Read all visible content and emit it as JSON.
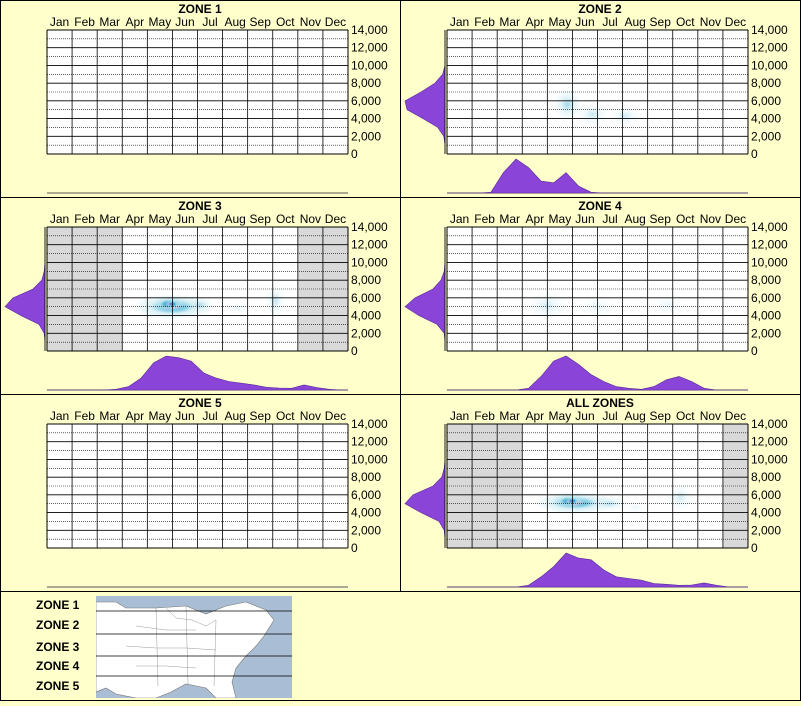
{
  "months": [
    "Jan",
    "Feb",
    "Mar",
    "Apr",
    "May",
    "Jun",
    "Jul",
    "Aug",
    "Sep",
    "Oct",
    "Nov",
    "Dec"
  ],
  "y_ticks": [
    "14,000",
    "12,000",
    "10,000",
    "8,000",
    "6,000",
    "4,000",
    "2,000",
    "0"
  ],
  "colors": {
    "background": "#ffffcc",
    "grid": "#000000",
    "density": "#8a44d8",
    "shade": "#d9d9d9",
    "heat_low": "#bfe7ef",
    "heat_mid": "#2aa7d2",
    "heat_high": "#ff2a9a"
  },
  "chart_data": [
    {
      "type": "heatmap",
      "title": "ZONE 1",
      "xlabel": "",
      "ylabel": "",
      "ylim": [
        0,
        14000
      ],
      "categories": [
        "Jan",
        "Feb",
        "Mar",
        "Apr",
        "May",
        "Jun",
        "Jul",
        "Aug",
        "Sep",
        "Oct",
        "Nov",
        "Dec"
      ],
      "shaded_months": [],
      "hotspots": [],
      "month_density": [],
      "elev_density": []
    },
    {
      "type": "heatmap",
      "title": "ZONE 2",
      "xlabel": "",
      "ylabel": "",
      "ylim": [
        0,
        14000
      ],
      "categories": [
        "Jan",
        "Feb",
        "Mar",
        "Apr",
        "May",
        "Jun",
        "Jul",
        "Aug",
        "Sep",
        "Oct",
        "Nov",
        "Dec"
      ],
      "shaded_months": [],
      "hotspots": [
        {
          "month": 5.3,
          "elev": 5600,
          "sx": 0.35,
          "sy": 1000,
          "v": 0.28
        },
        {
          "month": 6.3,
          "elev": 4500,
          "sx": 0.4,
          "sy": 700,
          "v": 0.16
        },
        {
          "month": 7.6,
          "elev": 4300,
          "sx": 0.4,
          "sy": 600,
          "v": 0.14
        }
      ],
      "month_density": [
        0,
        0,
        0,
        0.02,
        0.6,
        1.0,
        0.75,
        0.35,
        0.3,
        0.6,
        0.2,
        0.02,
        0,
        0,
        0,
        0,
        0,
        0,
        0,
        0,
        0,
        0,
        0,
        0
      ],
      "elev_density": [
        0,
        0,
        0.03,
        0.18,
        0.55,
        0.95,
        1.0,
        0.6,
        0.25,
        0.06,
        0,
        0,
        0,
        0,
        0
      ]
    },
    {
      "type": "heatmap",
      "title": "ZONE 3",
      "xlabel": "",
      "ylabel": "",
      "ylim": [
        0,
        14000
      ],
      "categories": [
        "Jan",
        "Feb",
        "Mar",
        "Apr",
        "May",
        "Jun",
        "Jul",
        "Aug",
        "Sep",
        "Oct",
        "Nov",
        "Dec"
      ],
      "shaded_months": [
        0,
        1,
        2,
        10,
        11
      ],
      "hotspots": [
        {
          "month": 5.5,
          "elev": 5000,
          "sx": 1.0,
          "sy": 800,
          "v": 0.5
        },
        {
          "month": 5.4,
          "elev": 5300,
          "sx": 0.45,
          "sy": 500,
          "v": 0.7
        },
        {
          "month": 5.5,
          "elev": 5300,
          "sx": 0.2,
          "sy": 300,
          "v": 0.6
        },
        {
          "month": 6.6,
          "elev": 5200,
          "sx": 0.35,
          "sy": 500,
          "v": 0.2
        },
        {
          "month": 9.6,
          "elev": 5700,
          "sx": 0.25,
          "sy": 1000,
          "v": 0.18
        },
        {
          "month": 8.1,
          "elev": 4800,
          "sx": 0.3,
          "sy": 400,
          "v": 0.08
        }
      ],
      "month_density": [
        0,
        0,
        0,
        0,
        0,
        0.02,
        0.1,
        0.35,
        0.8,
        1.0,
        0.95,
        0.85,
        0.5,
        0.35,
        0.25,
        0.2,
        0.15,
        0.08,
        0.06,
        0.05,
        0.15,
        0.07,
        0.02,
        0
      ],
      "elev_density": [
        0,
        0,
        0.02,
        0.15,
        0.6,
        1.0,
        0.8,
        0.3,
        0.08,
        0.02,
        0,
        0,
        0,
        0,
        0
      ]
    },
    {
      "type": "heatmap",
      "title": "ZONE 4",
      "xlabel": "",
      "ylabel": "",
      "ylim": [
        0,
        14000
      ],
      "categories": [
        "Jan",
        "Feb",
        "Mar",
        "Apr",
        "May",
        "Jun",
        "Jul",
        "Aug",
        "Sep",
        "Oct",
        "Nov",
        "Dec"
      ],
      "shaded_months": [],
      "hotspots": [
        {
          "month": 4.5,
          "elev": 5100,
          "sx": 0.5,
          "sy": 900,
          "v": 0.14
        },
        {
          "month": 6.5,
          "elev": 5000,
          "sx": 0.5,
          "sy": 700,
          "v": 0.07
        },
        {
          "month": 9.3,
          "elev": 5200,
          "sx": 0.4,
          "sy": 700,
          "v": 0.07
        }
      ],
      "month_density": [
        0,
        0,
        0,
        0,
        0,
        0,
        0.05,
        0.4,
        0.85,
        1.0,
        0.75,
        0.45,
        0.25,
        0.1,
        0.05,
        0.02,
        0.1,
        0.3,
        0.4,
        0.25,
        0.05,
        0,
        0,
        0
      ],
      "elev_density": [
        0,
        0,
        0.02,
        0.2,
        0.65,
        1.0,
        0.75,
        0.3,
        0.1,
        0.02,
        0,
        0,
        0,
        0,
        0
      ]
    },
    {
      "type": "heatmap",
      "title": "ZONE 5",
      "xlabel": "",
      "ylabel": "",
      "ylim": [
        0,
        14000
      ],
      "categories": [
        "Jan",
        "Feb",
        "Mar",
        "Apr",
        "May",
        "Jun",
        "Jul",
        "Aug",
        "Sep",
        "Oct",
        "Nov",
        "Dec"
      ],
      "shaded_months": [],
      "hotspots": [],
      "month_density": [],
      "elev_density": []
    },
    {
      "type": "heatmap",
      "title": "ALL ZONES",
      "xlabel": "",
      "ylabel": "",
      "ylim": [
        0,
        14000
      ],
      "categories": [
        "Jan",
        "Feb",
        "Mar",
        "Apr",
        "May",
        "Jun",
        "Jul",
        "Aug",
        "Sep",
        "Oct",
        "Nov",
        "Dec"
      ],
      "shaded_months": [
        0,
        1,
        2,
        11
      ],
      "hotspots": [
        {
          "month": 5.6,
          "elev": 5100,
          "sx": 1.0,
          "sy": 700,
          "v": 0.5
        },
        {
          "month": 5.4,
          "elev": 5300,
          "sx": 0.45,
          "sy": 450,
          "v": 0.7
        },
        {
          "month": 5.5,
          "elev": 5300,
          "sx": 0.2,
          "sy": 300,
          "v": 0.6
        },
        {
          "month": 7.0,
          "elev": 5000,
          "sx": 0.45,
          "sy": 500,
          "v": 0.2
        },
        {
          "month": 9.8,
          "elev": 5700,
          "sx": 0.3,
          "sy": 900,
          "v": 0.14
        },
        {
          "month": 8.0,
          "elev": 4600,
          "sx": 0.3,
          "sy": 400,
          "v": 0.06
        }
      ],
      "month_density": [
        0,
        0,
        0,
        0,
        0,
        0,
        0.05,
        0.3,
        0.6,
        1.0,
        0.85,
        0.8,
        0.5,
        0.3,
        0.25,
        0.2,
        0.1,
        0.08,
        0.05,
        0.06,
        0.12,
        0.05,
        0,
        0
      ],
      "elev_density": [
        0,
        0,
        0.02,
        0.15,
        0.6,
        1.0,
        0.8,
        0.3,
        0.08,
        0.02,
        0,
        0,
        0,
        0,
        0
      ]
    }
  ],
  "legend": {
    "labels": [
      "ZONE 1",
      "ZONE 2",
      "ZONE 3",
      "ZONE 4",
      "ZONE 5"
    ]
  }
}
